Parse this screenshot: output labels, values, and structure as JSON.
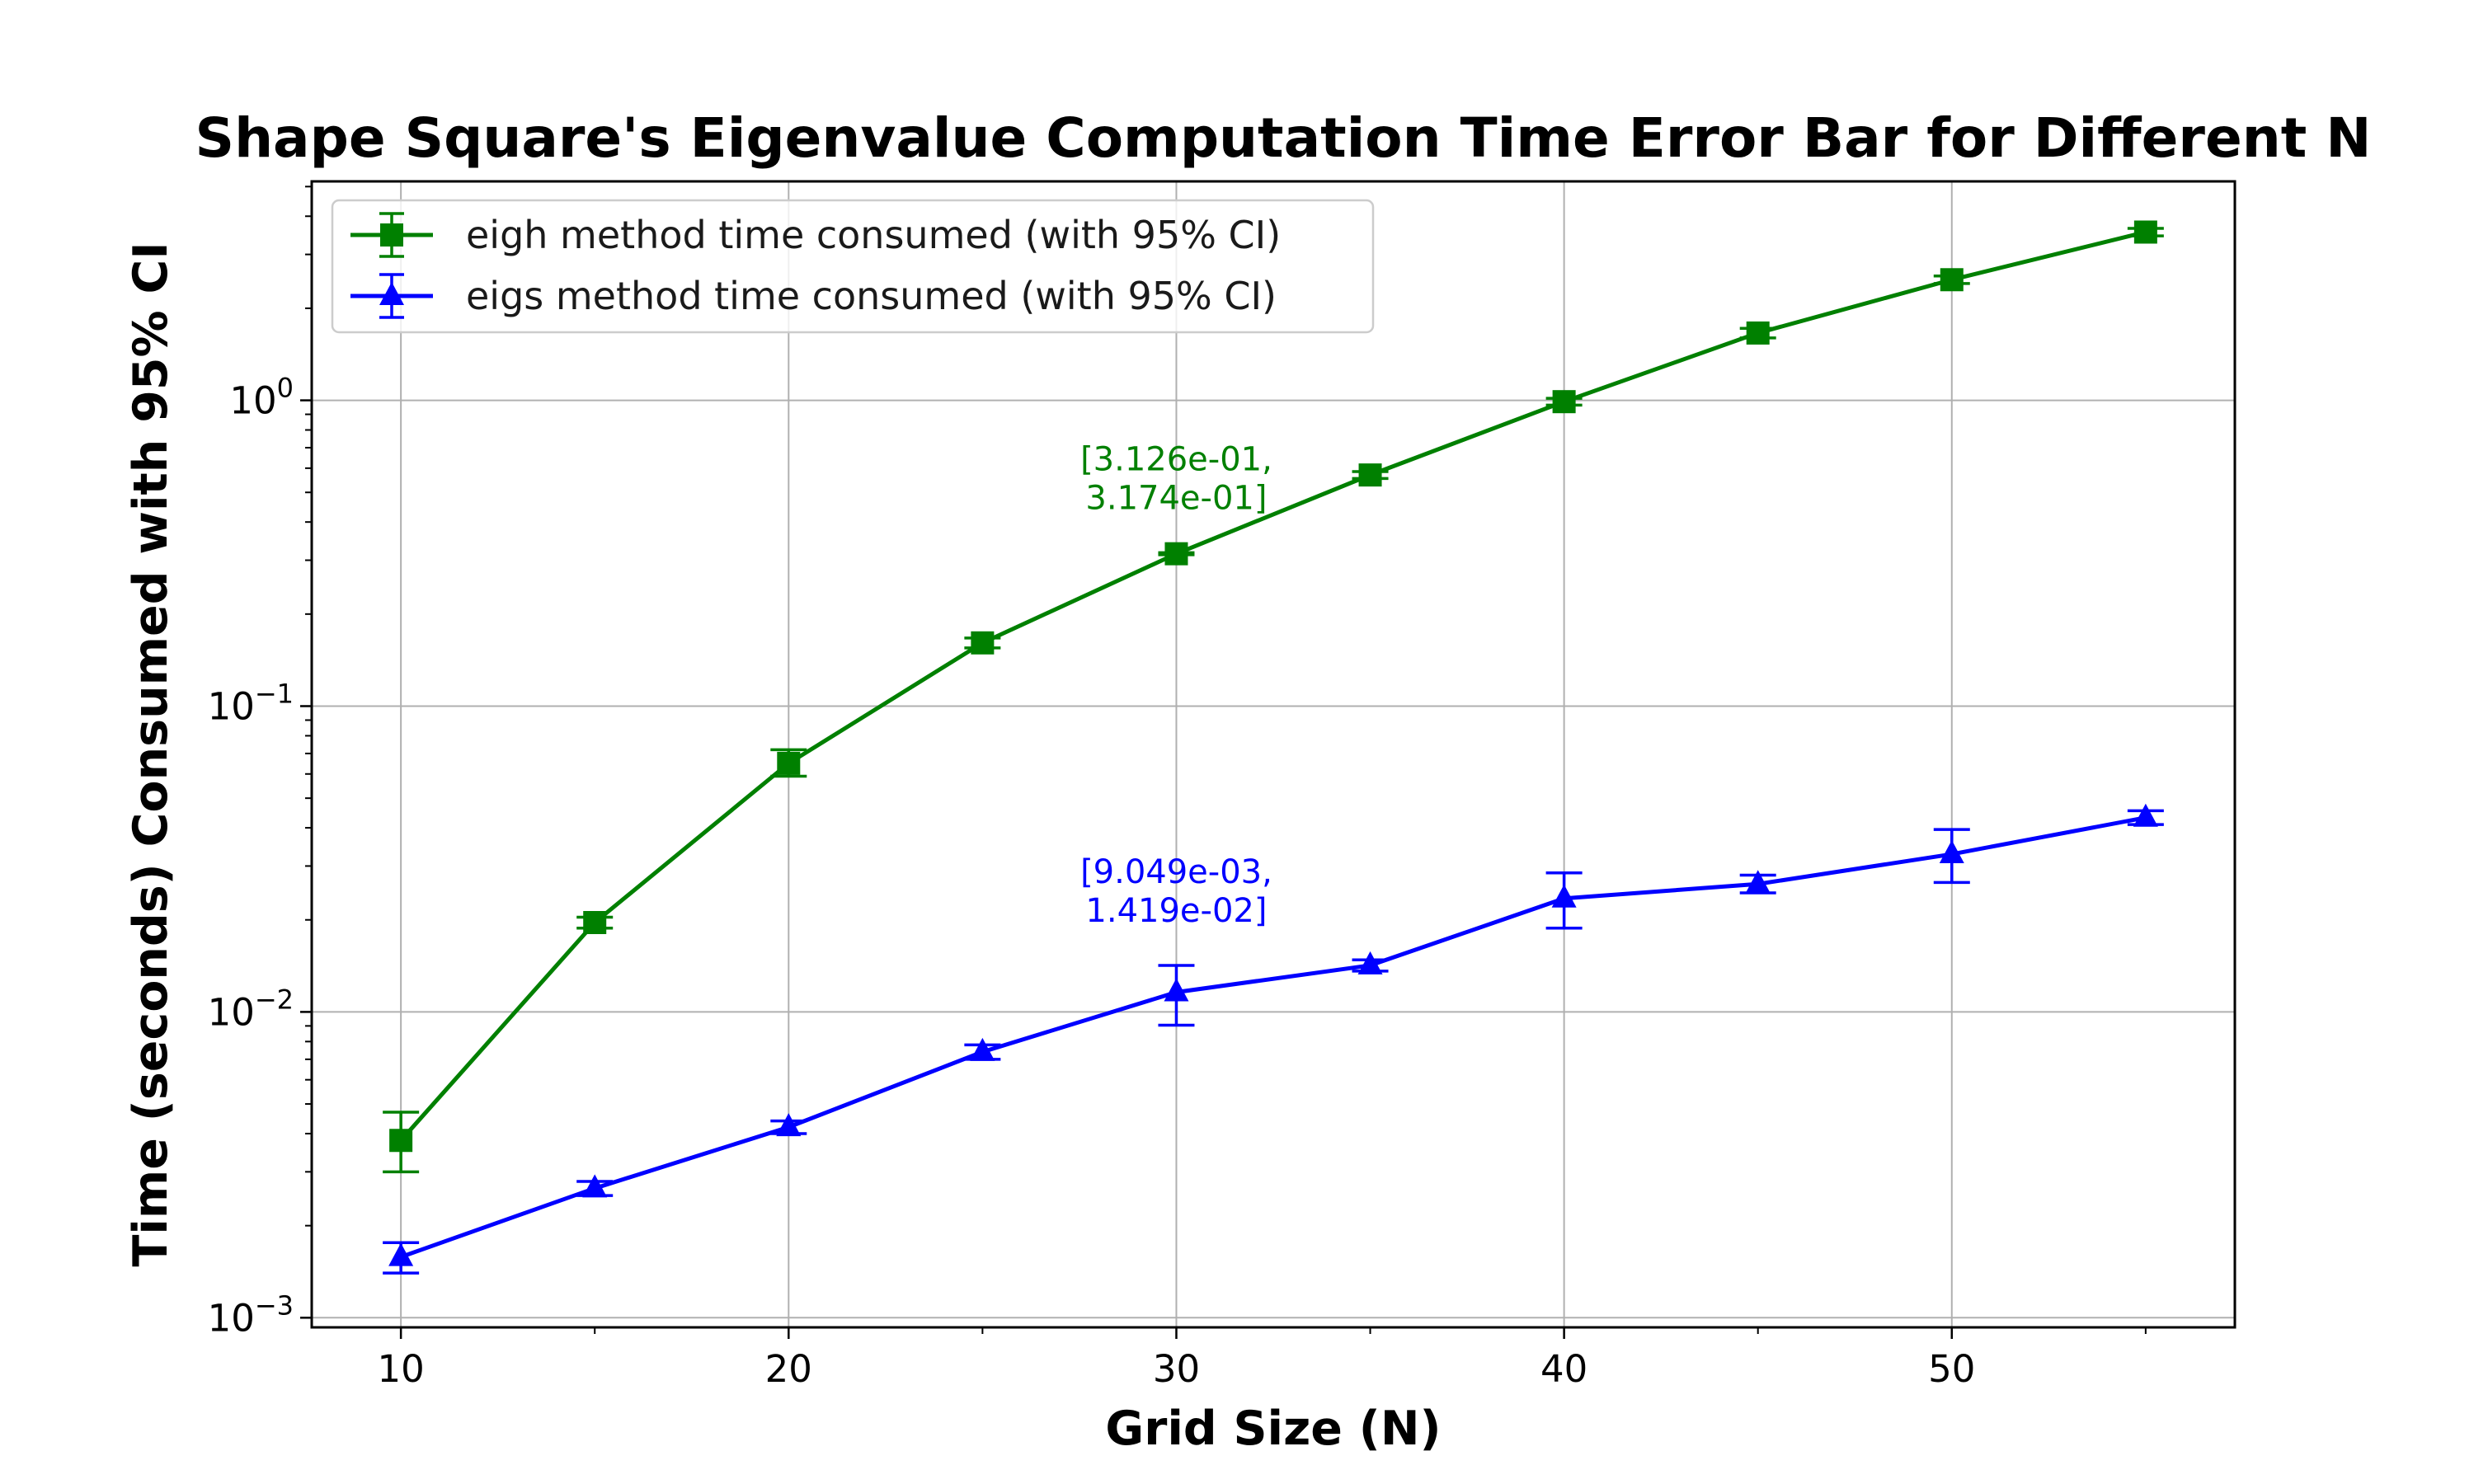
{
  "chart_data": {
    "type": "line",
    "title": "Shape Square's Eigenvalue Computation Time Error Bar for Different N",
    "xlabel": "Grid Size (N)",
    "ylabel": "Time (seconds) Consumed with 95% CI",
    "yscale": "log",
    "xlim": [
      7.7,
      57.3
    ],
    "ylim": [
      0.00093,
      5.2
    ],
    "x_ticks": [
      10,
      20,
      30,
      40,
      50
    ],
    "x_tick_labels": [
      "10",
      "20",
      "30",
      "40",
      "50"
    ],
    "y_ticks": [
      0.001,
      0.01,
      0.1,
      1
    ],
    "y_tick_labels": [
      {
        "base": "10",
        "exp": "−3"
      },
      {
        "base": "10",
        "exp": "−2"
      },
      {
        "base": "10",
        "exp": "−1"
      },
      {
        "base": "10",
        "exp": "0"
      }
    ],
    "grid": true,
    "legend_position": "upper-left",
    "x": [
      10,
      15,
      20,
      25,
      30,
      35,
      40,
      45,
      50,
      55
    ],
    "series": [
      {
        "name": "eigh method time consumed (with 95% CI)",
        "color": "#008000",
        "marker": "square",
        "values": [
          0.0038,
          0.0196,
          0.065,
          0.161,
          0.315,
          0.57,
          0.99,
          1.66,
          2.48,
          3.55
        ],
        "ci_low": [
          0.003,
          0.0188,
          0.059,
          0.155,
          0.3126,
          0.555,
          0.965,
          1.6,
          2.41,
          3.45
        ],
        "ci_high": [
          0.0047,
          0.0204,
          0.072,
          0.167,
          0.3174,
          0.585,
          1.015,
          1.72,
          2.55,
          3.65
        ]
      },
      {
        "name": "eigs method time consumed (with 95% CI)",
        "color": "#0000ff",
        "marker": "triangle",
        "values": [
          0.00158,
          0.00265,
          0.0042,
          0.0074,
          0.0116,
          0.0142,
          0.0235,
          0.0262,
          0.0328,
          0.0432
        ],
        "ci_low": [
          0.0014,
          0.00251,
          0.004,
          0.007,
          0.009049,
          0.0136,
          0.0188,
          0.0245,
          0.0265,
          0.041
        ],
        "ci_high": [
          0.00176,
          0.00279,
          0.0044,
          0.0078,
          0.01419,
          0.0148,
          0.0285,
          0.028,
          0.0395,
          0.0455
        ]
      }
    ],
    "annotations": [
      {
        "x": 30,
        "series": 0,
        "lines": [
          "[3.126e-01,",
          "3.174e-01]"
        ],
        "color": "#008000"
      },
      {
        "x": 30,
        "series": 1,
        "lines": [
          "[9.049e-03,",
          "1.419e-02]"
        ],
        "color": "#0000ff"
      }
    ]
  }
}
